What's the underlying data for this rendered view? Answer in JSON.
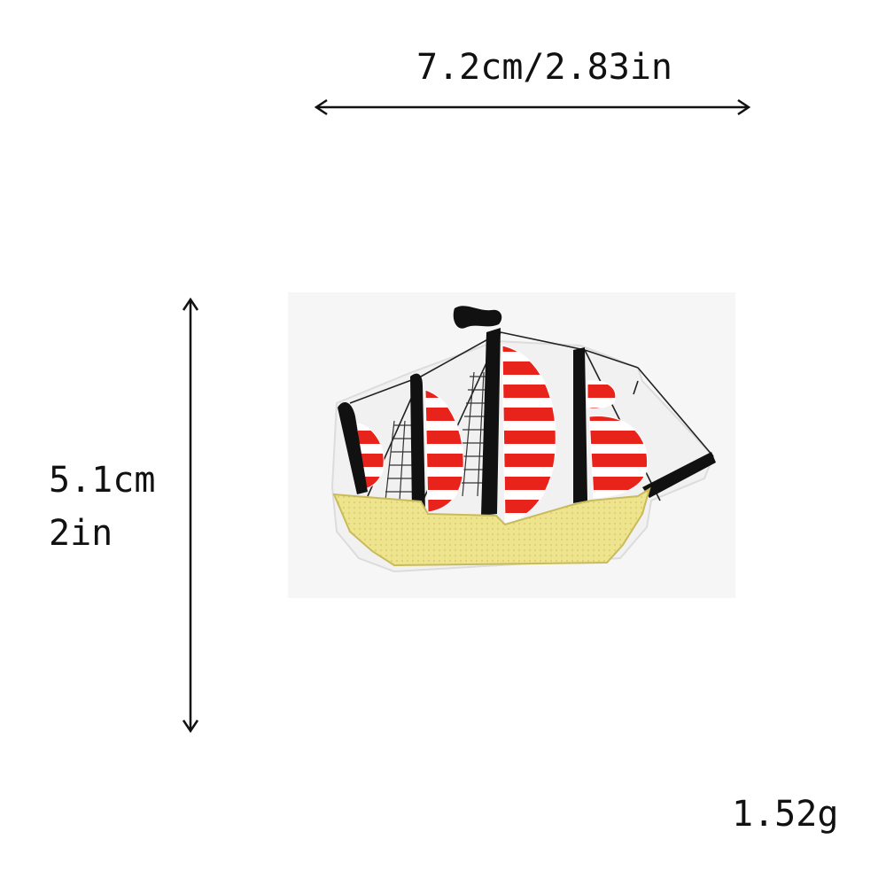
{
  "dimensions": {
    "width_label": "7.2cm/2.83in",
    "height_cm": "5.1cm",
    "height_in": "2in"
  },
  "weight_label": "1.52g",
  "product": {
    "image_icon": "sailing-ship-patch-icon",
    "colors": {
      "sail_red": "#e8231c",
      "hull_yellow": "#efe48e",
      "mast_black": "#111111",
      "backing_white": "#f4f4f4"
    }
  }
}
